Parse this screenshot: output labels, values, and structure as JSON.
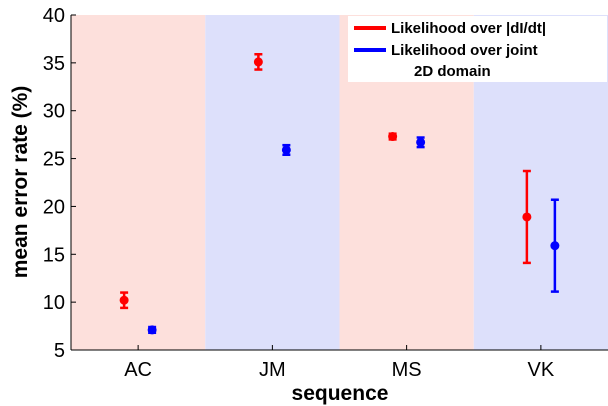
{
  "chart_data": {
    "type": "scatter",
    "title": "",
    "xlabel": "sequence",
    "ylabel": "mean error rate (%)",
    "categories": [
      "AC",
      "JM",
      "MS",
      "VK"
    ],
    "ylim": [
      5,
      40
    ],
    "yticks": [
      5,
      10,
      15,
      20,
      25,
      30,
      35,
      40
    ],
    "grid": false,
    "legend_position": "top-right",
    "background_bands": [
      "#fde0dc",
      "#dde0fb",
      "#fde0dc",
      "#dde0fb"
    ],
    "series": [
      {
        "name": "Likelihood over |dI/dt|",
        "color": "#ff0000",
        "values": [
          10.2,
          35.1,
          27.3,
          18.9
        ],
        "errors": [
          0.8,
          0.8,
          0.3,
          4.8
        ]
      },
      {
        "name": "Likelihood over joint 2D domain",
        "color": "#0000ff",
        "values": [
          7.1,
          25.9,
          26.7,
          15.9
        ],
        "errors": [
          0.3,
          0.5,
          0.5,
          4.8
        ]
      }
    ],
    "legend_lines": [
      [
        "Likelihood over |dI/dt|"
      ],
      [
        "Likelihood over joint",
        "2D domain"
      ]
    ]
  }
}
